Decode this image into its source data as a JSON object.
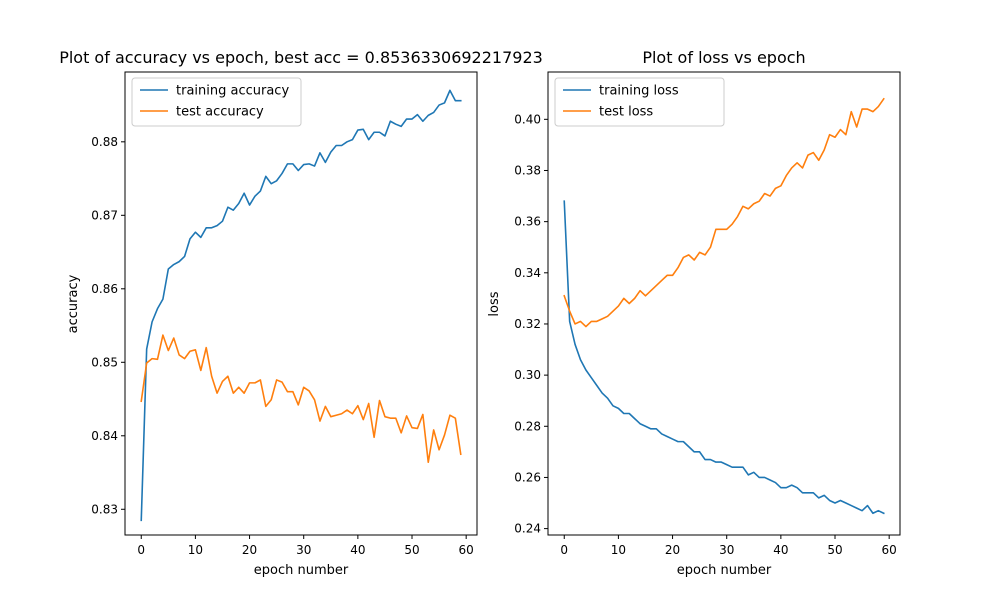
{
  "chart_data": [
    {
      "type": "line",
      "title": "Plot of accuracy vs epoch, best acc = 0.8536330692217923",
      "xlabel": "epoch number",
      "ylabel": "accuracy",
      "xlim": [
        -3,
        62
      ],
      "ylim": [
        0.8265,
        0.8895
      ],
      "xticks": [
        0,
        10,
        20,
        30,
        40,
        50,
        60
      ],
      "xtick_labels": [
        "0",
        "10",
        "20",
        "30",
        "40",
        "50",
        "60"
      ],
      "yticks": [
        0.83,
        0.84,
        0.85,
        0.86,
        0.87,
        0.88
      ],
      "ytick_labels": [
        "0.83",
        "0.84",
        "0.85",
        "0.86",
        "0.87",
        "0.88"
      ],
      "grid": false,
      "legend_position": "top-left",
      "x": [
        0,
        1,
        2,
        3,
        4,
        5,
        6,
        7,
        8,
        9,
        10,
        11,
        12,
        13,
        14,
        15,
        16,
        17,
        18,
        19,
        20,
        21,
        22,
        23,
        24,
        25,
        26,
        27,
        28,
        29,
        30,
        31,
        32,
        33,
        34,
        35,
        36,
        37,
        38,
        39,
        40,
        41,
        42,
        43,
        44,
        45,
        46,
        47,
        48,
        49,
        50,
        51,
        52,
        53,
        54,
        55,
        56,
        57,
        58,
        59
      ],
      "series": [
        {
          "name": "training accuracy",
          "color": "#1f77b4",
          "values": [
            0.8285,
            0.8518,
            0.8555,
            0.8573,
            0.8586,
            0.8627,
            0.8633,
            0.8637,
            0.8644,
            0.8668,
            0.8677,
            0.867,
            0.8683,
            0.8683,
            0.8686,
            0.8692,
            0.8711,
            0.8707,
            0.8716,
            0.873,
            0.8714,
            0.8726,
            0.8733,
            0.8753,
            0.8743,
            0.8747,
            0.8757,
            0.877,
            0.877,
            0.8761,
            0.8769,
            0.877,
            0.8767,
            0.8785,
            0.8772,
            0.8786,
            0.8795,
            0.8795,
            0.88,
            0.8803,
            0.8816,
            0.8817,
            0.8803,
            0.8813,
            0.8813,
            0.8808,
            0.8828,
            0.8824,
            0.8821,
            0.8831,
            0.8831,
            0.8837,
            0.8828,
            0.8836,
            0.884,
            0.885,
            0.8853,
            0.887,
            0.8856,
            0.8856
          ]
        },
        {
          "name": "test accuracy",
          "color": "#ff7f0e",
          "values": [
            0.8447,
            0.8499,
            0.8505,
            0.8504,
            0.8537,
            0.8516,
            0.8533,
            0.851,
            0.8505,
            0.8515,
            0.8517,
            0.8489,
            0.852,
            0.8481,
            0.8458,
            0.8474,
            0.8481,
            0.8458,
            0.8466,
            0.8458,
            0.8472,
            0.8472,
            0.8476,
            0.844,
            0.8449,
            0.8476,
            0.8473,
            0.846,
            0.846,
            0.8442,
            0.8466,
            0.8461,
            0.8449,
            0.842,
            0.844,
            0.8426,
            0.8428,
            0.843,
            0.8435,
            0.843,
            0.8441,
            0.8422,
            0.8444,
            0.8398,
            0.8448,
            0.8426,
            0.8424,
            0.8424,
            0.8404,
            0.8427,
            0.8411,
            0.841,
            0.8429,
            0.8364,
            0.8408,
            0.8381,
            0.8401,
            0.8428,
            0.8424,
            0.8375
          ]
        }
      ]
    },
    {
      "type": "line",
      "title": "Plot of loss vs epoch",
      "xlabel": "epoch number",
      "ylabel": "loss",
      "xlim": [
        -3,
        62
      ],
      "ylim": [
        0.2375,
        0.4185
      ],
      "xticks": [
        0,
        10,
        20,
        30,
        40,
        50,
        60
      ],
      "xtick_labels": [
        "0",
        "10",
        "20",
        "30",
        "40",
        "50",
        "60"
      ],
      "yticks": [
        0.24,
        0.26,
        0.28,
        0.3,
        0.32,
        0.34,
        0.36,
        0.38,
        0.4
      ],
      "ytick_labels": [
        "0.24",
        "0.26",
        "0.28",
        "0.30",
        "0.32",
        "0.34",
        "0.36",
        "0.38",
        "0.40"
      ],
      "grid": false,
      "legend_position": "top-left",
      "x": [
        0,
        1,
        2,
        3,
        4,
        5,
        6,
        7,
        8,
        9,
        10,
        11,
        12,
        13,
        14,
        15,
        16,
        17,
        18,
        19,
        20,
        21,
        22,
        23,
        24,
        25,
        26,
        27,
        28,
        29,
        30,
        31,
        32,
        33,
        34,
        35,
        36,
        37,
        38,
        39,
        40,
        41,
        42,
        43,
        44,
        45,
        46,
        47,
        48,
        49,
        50,
        51,
        52,
        53,
        54,
        55,
        56,
        57,
        58,
        59
      ],
      "series": [
        {
          "name": "training loss",
          "color": "#1f77b4",
          "values": [
            0.368,
            0.321,
            0.312,
            0.306,
            0.302,
            0.299,
            0.296,
            0.293,
            0.291,
            0.288,
            0.287,
            0.285,
            0.285,
            0.283,
            0.281,
            0.28,
            0.279,
            0.279,
            0.277,
            0.276,
            0.275,
            0.274,
            0.274,
            0.272,
            0.27,
            0.27,
            0.267,
            0.267,
            0.266,
            0.266,
            0.265,
            0.264,
            0.264,
            0.264,
            0.261,
            0.262,
            0.26,
            0.26,
            0.259,
            0.258,
            0.256,
            0.256,
            0.257,
            0.256,
            0.254,
            0.254,
            0.254,
            0.252,
            0.253,
            0.251,
            0.25,
            0.251,
            0.25,
            0.249,
            0.248,
            0.247,
            0.249,
            0.246,
            0.247,
            0.246
          ]
        },
        {
          "name": "test loss",
          "color": "#ff7f0e",
          "values": [
            0.331,
            0.325,
            0.32,
            0.321,
            0.319,
            0.321,
            0.321,
            0.322,
            0.323,
            0.325,
            0.327,
            0.33,
            0.328,
            0.33,
            0.333,
            0.331,
            0.333,
            0.335,
            0.337,
            0.339,
            0.339,
            0.342,
            0.346,
            0.347,
            0.345,
            0.348,
            0.347,
            0.35,
            0.357,
            0.357,
            0.357,
            0.359,
            0.362,
            0.366,
            0.365,
            0.367,
            0.368,
            0.371,
            0.37,
            0.373,
            0.374,
            0.378,
            0.381,
            0.383,
            0.381,
            0.386,
            0.387,
            0.384,
            0.388,
            0.394,
            0.393,
            0.396,
            0.394,
            0.403,
            0.397,
            0.404,
            0.404,
            0.403,
            0.405,
            0.408
          ]
        }
      ]
    }
  ]
}
